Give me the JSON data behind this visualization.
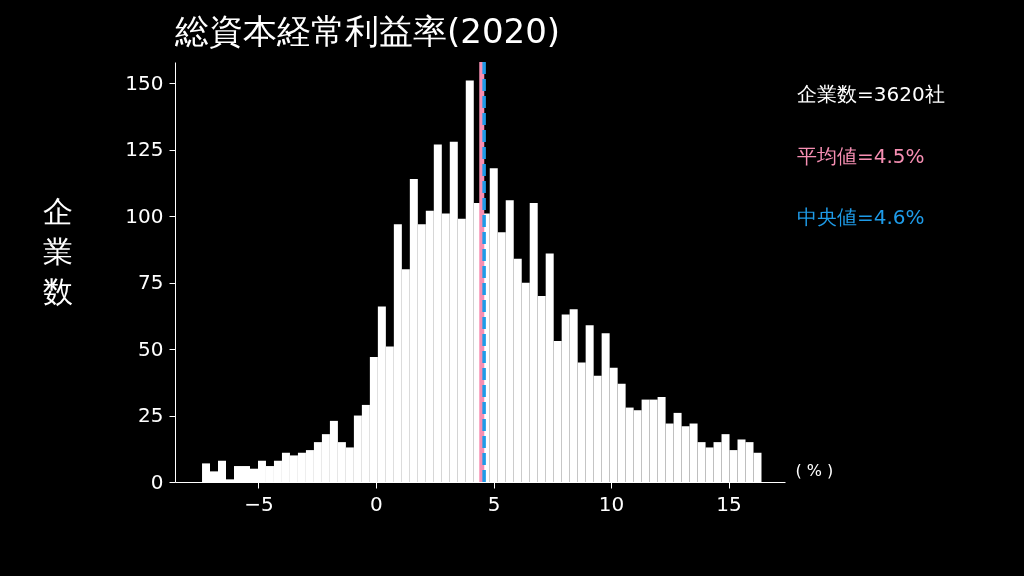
{
  "chart_data": {
    "type": "histogram",
    "title": "総資本経常利益率(2020)",
    "xlabel": "( % )",
    "ylabel": "企業数",
    "annotations": [
      "企業数=3620社"
    ],
    "bins": [
      -7.4,
      -7.06,
      -6.72,
      -6.38,
      -6.04,
      -5.7,
      -5.36,
      -5.02,
      -4.68,
      -4.34,
      -4.0,
      -3.66,
      -3.32,
      -2.98,
      -2.64,
      -2.3,
      -1.96,
      -1.62,
      -1.28,
      -0.94,
      -0.6,
      -0.26,
      0.08,
      0.42,
      0.76,
      1.1,
      1.44,
      1.78,
      2.12,
      2.46,
      2.8,
      3.14,
      3.48,
      3.82,
      4.16,
      4.5,
      4.84,
      5.18,
      5.52,
      5.86,
      6.2,
      6.54,
      6.88,
      7.22,
      7.56,
      7.9,
      8.24,
      8.58,
      8.92,
      9.26,
      9.6,
      9.94,
      10.28,
      10.62,
      10.96,
      11.3,
      11.64,
      11.98,
      12.32,
      12.66,
      13.0,
      13.34,
      13.68,
      14.02,
      14.36,
      14.7,
      15.04,
      15.38,
      15.72,
      16.06,
      16.4
    ],
    "values": [
      7,
      4,
      8,
      1,
      6,
      6,
      5,
      8,
      6,
      8,
      11,
      10,
      11,
      12,
      15,
      18,
      23,
      15,
      13,
      25,
      29,
      47,
      66,
      51,
      97,
      80,
      114,
      97,
      102,
      127,
      101,
      128,
      99,
      151,
      105,
      101,
      118,
      94,
      106,
      84,
      75,
      105,
      70,
      86,
      53,
      63,
      65,
      45,
      59,
      40,
      56,
      43,
      37,
      28,
      27,
      31,
      31,
      32,
      22,
      26,
      21,
      22,
      15,
      13,
      15,
      18,
      12,
      16,
      15,
      11
    ],
    "color": "#ffffff",
    "xlim": [
      -8.55,
      17.4
    ],
    "xticks": [
      {
        "value": -5,
        "label": "−5"
      },
      0,
      5,
      10,
      15
    ],
    "ylim": [
      0,
      158
    ],
    "yticks": [
      0,
      25,
      50,
      75,
      100,
      125,
      150
    ],
    "ref_lines": [
      {
        "axis": "x",
        "value": 4.5,
        "label": "平均値=4.5%",
        "color": "#f78fb3",
        "line_style": "solid"
      },
      {
        "axis": "x",
        "value": 4.6,
        "label": "中央値=4.6%",
        "color": "#1e9be8",
        "line_style": "dashed"
      }
    ],
    "grid": false
  }
}
